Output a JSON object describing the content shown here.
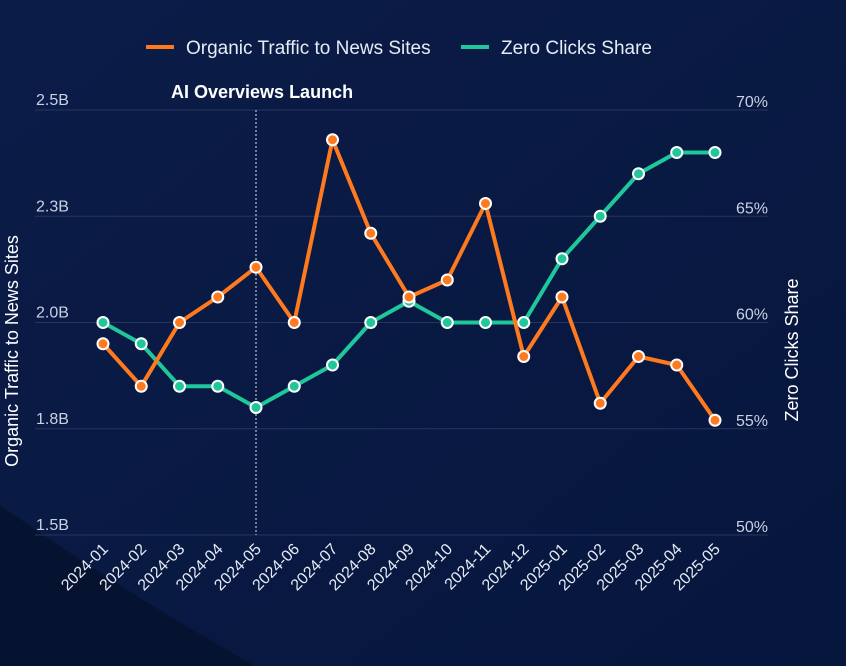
{
  "chart_data": {
    "type": "line",
    "title": "",
    "categories": [
      "2024-01",
      "2024-02",
      "2024-03",
      "2024-04",
      "2024-05",
      "2024-06",
      "2024-07",
      "2024-08",
      "2024-09",
      "2024-10",
      "2024-11",
      "2024-12",
      "2025-01",
      "2025-02",
      "2025-03",
      "2025-04",
      "2025-05"
    ],
    "series": [
      {
        "name": "Organic Traffic to News Sites",
        "axis": "left",
        "color": "#ff7a1f",
        "unit": "B",
        "values": [
          1.95,
          1.85,
          2.0,
          2.06,
          2.13,
          2.0,
          2.43,
          2.21,
          2.06,
          2.1,
          2.28,
          1.92,
          2.06,
          1.81,
          1.92,
          1.9,
          1.77
        ]
      },
      {
        "name": "Zero Clicks Share",
        "axis": "right",
        "color": "#1fc79b",
        "unit": "%",
        "values": [
          60,
          59,
          57,
          57,
          56,
          57,
          58,
          60,
          61,
          60,
          60,
          60,
          63,
          65,
          67,
          68,
          68
        ]
      }
    ],
    "y_left": {
      "label": "Organic Traffic to News Sites",
      "range": [
        1.5,
        2.5
      ],
      "ticks": [
        1.5,
        1.75,
        2.0,
        2.25,
        2.5
      ],
      "tick_labels": [
        "1.5B",
        "1.8B",
        "2.0B",
        "2.3B",
        "2.5B"
      ]
    },
    "y_right": {
      "label": "Zero Clicks Share",
      "range": [
        50,
        70
      ],
      "ticks": [
        50,
        55,
        60,
        65,
        70
      ],
      "tick_labels": [
        "50%",
        "55%",
        "60%",
        "65%",
        "70%"
      ]
    },
    "xlabel": "",
    "grid": true,
    "legend": {
      "placement": "top-center",
      "entries": [
        "Organic Traffic to News Sites",
        "Zero Clicks Share"
      ]
    },
    "annotations": [
      {
        "type": "vertical-line",
        "x": "2024-05",
        "style": "dotted",
        "label": "AI Overviews Launch"
      }
    ]
  },
  "colors": {
    "background": "#0a1b45",
    "background_corner": "#061330",
    "grid": "#26355f",
    "marker_stroke": "#ffffff"
  }
}
